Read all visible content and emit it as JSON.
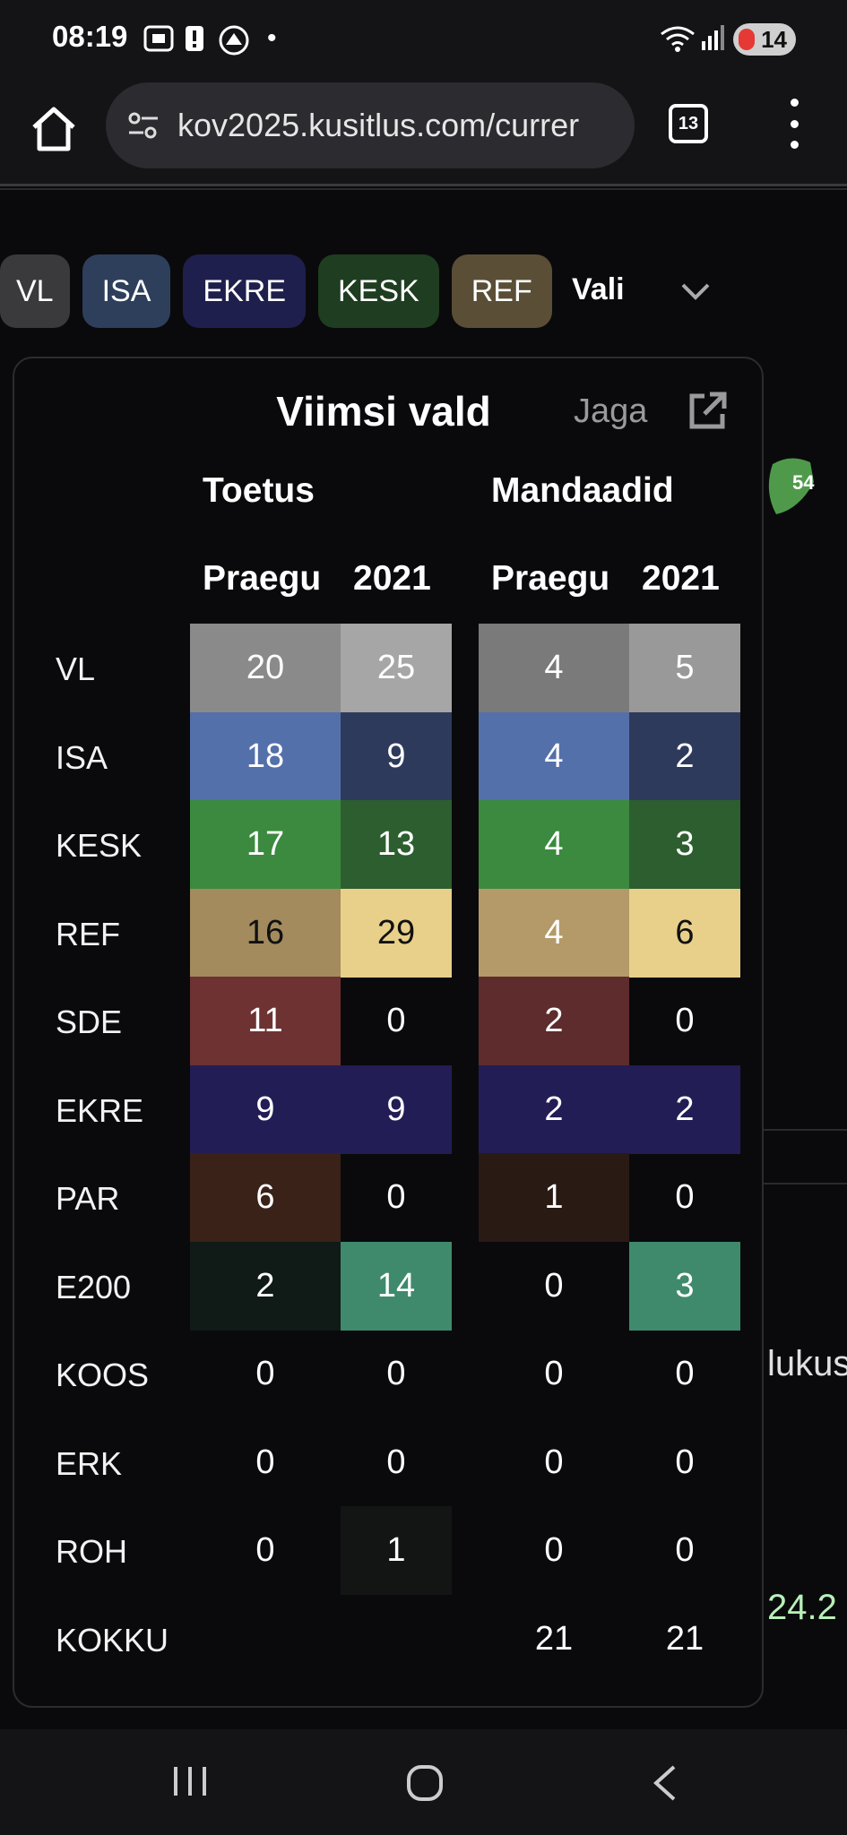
{
  "status": {
    "time": "08:19",
    "battery": "14"
  },
  "browser": {
    "url": "kov2025.kusitlus.com/currer",
    "tab_count": "13"
  },
  "filter": {
    "chips": [
      {
        "label": "VL",
        "color": "#3a3a3d"
      },
      {
        "label": "ISA",
        "color": "#2e3f5c"
      },
      {
        "label": "EKRE",
        "color": "#1f1f4d"
      },
      {
        "label": "KESK",
        "color": "#1f3d20"
      },
      {
        "label": "REF",
        "color": "#5a4e36"
      }
    ],
    "select_label": "Vali"
  },
  "background": {
    "map_badge": "54",
    "partial_text": "lukus",
    "partial_number": "24.2"
  },
  "modal": {
    "title": "Viimsi vald",
    "share_label": "Jaga",
    "group_support": "Toetus",
    "group_seats": "Mandaadid",
    "col_now": "Praegu",
    "col_2021": "2021",
    "rows": [
      {
        "party": "VL",
        "support_now": "20",
        "support_2021": "25",
        "seats_now": "4",
        "seats_2021": "5",
        "c_sn": "#8a8a8a",
        "c_s21": "#a6a6a6",
        "c_mn": "#7a7a7a",
        "c_m21": "#999999",
        "t_s21": "#ffffff",
        "t_m21": "#ffffff"
      },
      {
        "party": "ISA",
        "support_now": "18",
        "support_2021": "9",
        "seats_now": "4",
        "seats_2021": "2",
        "c_sn": "#5470aa",
        "c_s21": "#2e3a5c",
        "c_mn": "#5470aa",
        "c_m21": "#2e3a5c",
        "t_s21": "#ffffff",
        "t_m21": "#ffffff"
      },
      {
        "party": "KESK",
        "support_now": "17",
        "support_2021": "13",
        "seats_now": "4",
        "seats_2021": "3",
        "c_sn": "#3b8a3f",
        "c_s21": "#2d5e2f",
        "c_mn": "#3b8a3f",
        "c_m21": "#2d5e2f",
        "t_s21": "#ffffff",
        "t_m21": "#ffffff"
      },
      {
        "party": "REF",
        "support_now": "16",
        "support_2021": "29",
        "seats_now": "4",
        "seats_2021": "6",
        "c_sn": "#a38b5e",
        "c_s21": "#e8d08a",
        "c_mn": "#b49a68",
        "c_m21": "#e8d08a",
        "t_s21": "#111111",
        "t_m21": "#111111"
      },
      {
        "party": "SDE",
        "support_now": "11",
        "support_2021": "0",
        "seats_now": "2",
        "seats_2021": "0",
        "c_sn": "#6e3233",
        "c_s21": "transparent",
        "c_mn": "#5e2c2d",
        "c_m21": "transparent",
        "t_s21": "#ffffff",
        "t_m21": "#ffffff"
      },
      {
        "party": "EKRE",
        "support_now": "9",
        "support_2021": "9",
        "seats_now": "2",
        "seats_2021": "2",
        "c_sn": "#221d55",
        "c_s21": "#221d55",
        "c_mn": "#221d55",
        "c_m21": "#221d55",
        "t_s21": "#ffffff",
        "t_m21": "#ffffff"
      },
      {
        "party": "PAR",
        "support_now": "6",
        "support_2021": "0",
        "seats_now": "1",
        "seats_2021": "0",
        "c_sn": "#3a2219",
        "c_s21": "transparent",
        "c_mn": "#2a1a14",
        "c_m21": "transparent",
        "t_s21": "#ffffff",
        "t_m21": "#ffffff"
      },
      {
        "party": "E200",
        "support_now": "2",
        "support_2021": "14",
        "seats_now": "0",
        "seats_2021": "3",
        "c_sn": "#101a16",
        "c_s21": "#3f8a6d",
        "c_mn": "transparent",
        "c_m21": "#3f8a6d",
        "t_s21": "#ffffff",
        "t_m21": "#ffffff"
      },
      {
        "party": "KOOS",
        "support_now": "0",
        "support_2021": "0",
        "seats_now": "0",
        "seats_2021": "0",
        "c_sn": "transparent",
        "c_s21": "transparent",
        "c_mn": "transparent",
        "c_m21": "transparent",
        "t_s21": "#ffffff",
        "t_m21": "#ffffff"
      },
      {
        "party": "ERK",
        "support_now": "0",
        "support_2021": "0",
        "seats_now": "0",
        "seats_2021": "0",
        "c_sn": "transparent",
        "c_s21": "transparent",
        "c_mn": "transparent",
        "c_m21": "transparent",
        "t_s21": "#ffffff",
        "t_m21": "#ffffff"
      },
      {
        "party": "ROH",
        "support_now": "0",
        "support_2021": "1",
        "seats_now": "0",
        "seats_2021": "0",
        "c_sn": "transparent",
        "c_s21": "#121514",
        "c_mn": "transparent",
        "c_m21": "transparent",
        "t_s21": "#ffffff",
        "t_m21": "#ffffff"
      },
      {
        "party": "KOKKU",
        "support_now": "",
        "support_2021": "",
        "seats_now": "21",
        "seats_2021": "21",
        "c_sn": "transparent",
        "c_s21": "transparent",
        "c_mn": "transparent",
        "c_m21": "transparent",
        "t_s21": "#ffffff",
        "t_m21": "#ffffff"
      }
    ]
  },
  "navbar": {
    "items": [
      "recents",
      "home",
      "back"
    ]
  }
}
